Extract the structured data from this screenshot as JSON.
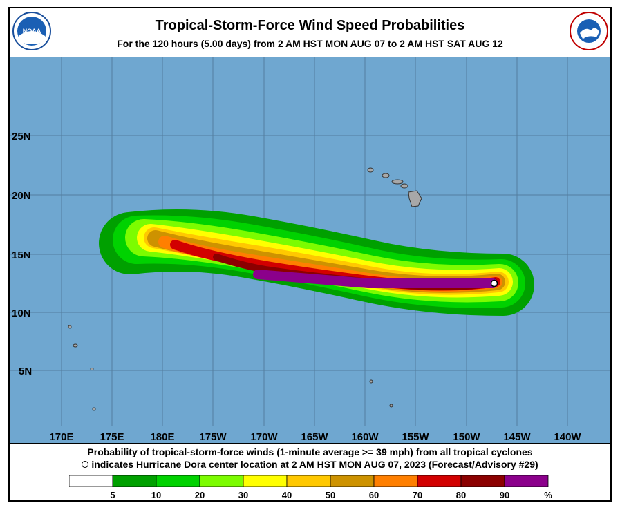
{
  "header": {
    "title": "Tropical-Storm-Force Wind Speed Probabilities",
    "subtitle": "For the 120 hours (5.00 days) from 2 AM HST MON AUG 07 to 2 AM HST SAT AUG 12",
    "noaa_logo_text": "NOAA",
    "nws_logo_text": "NATIONAL WEATHER SERVICE"
  },
  "map": {
    "lat_labels": [
      "25N",
      "20N",
      "15N",
      "10N",
      "5N"
    ],
    "lon_labels": [
      "170E",
      "175E",
      "180E",
      "175W",
      "170W",
      "165W",
      "160W",
      "155W",
      "150W",
      "145W",
      "140W"
    ],
    "ocean_color": "#6fa7d0",
    "land_color": "#a8a8a8",
    "storm_center_marker": "open-circle"
  },
  "footer": {
    "caption_line1": "Probability of tropical-storm-force winds (1-minute average >= 39 mph) from all tropical cyclones",
    "caption_line2": "indicates Hurricane Dora center location at 2 AM HST MON AUG 07, 2023 (Forecast/Advisory #29)"
  },
  "legend": {
    "unit": "%",
    "bins": [
      {
        "label": "5",
        "color": "#ffffff"
      },
      {
        "label": "10",
        "color": "#00a000"
      },
      {
        "label": "20",
        "color": "#00d200"
      },
      {
        "label": "30",
        "color": "#7cfc00"
      },
      {
        "label": "40",
        "color": "#ffff00"
      },
      {
        "label": "50",
        "color": "#ffc800"
      },
      {
        "label": "60",
        "color": "#cd9200"
      },
      {
        "label": "70",
        "color": "#ff7f00"
      },
      {
        "label": "80",
        "color": "#d20000"
      },
      {
        "label": "90",
        "color": "#8b0000"
      },
      {
        "label": "",
        "color": "#8b008b"
      }
    ]
  }
}
